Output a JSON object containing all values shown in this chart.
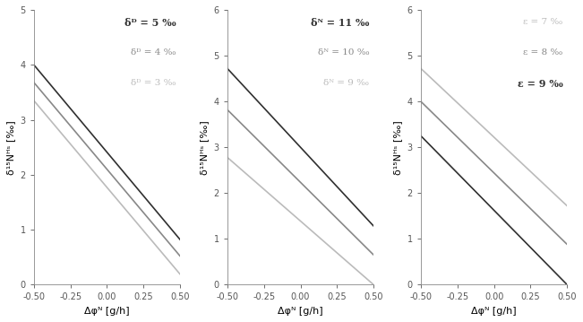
{
  "panels": [
    {
      "legend_lines": [
        {
          "label": "δᴰ = 5 ‰",
          "color": "#303030",
          "bold": true
        },
        {
          "label": "δᴰ = 4 ‰",
          "color": "#888888",
          "bold": false
        },
        {
          "label": "δᴰ = 3 ‰",
          "color": "#bbbbbb",
          "bold": false
        }
      ],
      "line_data": [
        {
          "x": [
            -0.5,
            0.5
          ],
          "y": [
            4.0,
            0.82
          ],
          "color": "#303030"
        },
        {
          "x": [
            -0.5,
            0.5
          ],
          "y": [
            3.68,
            0.52
          ],
          "color": "#888888"
        },
        {
          "x": [
            -0.5,
            0.5
          ],
          "y": [
            3.35,
            0.19
          ],
          "color": "#bbbbbb"
        }
      ],
      "ylim": [
        0,
        5
      ],
      "yticks": [
        0,
        1,
        2,
        3,
        4,
        5
      ],
      "ylabel": "δ¹⁵Nᴴˢ [‰]",
      "show_ylabel": true
    },
    {
      "legend_lines": [
        {
          "label": "δᴺ = 11 ‰",
          "color": "#303030",
          "bold": true
        },
        {
          "label": "δᴺ = 10 ‰",
          "color": "#888888",
          "bold": false
        },
        {
          "label": "δᴺ = 9 ‰",
          "color": "#bbbbbb",
          "bold": false
        }
      ],
      "line_data": [
        {
          "x": [
            -0.5,
            0.5
          ],
          "y": [
            4.72,
            1.28
          ],
          "color": "#303030"
        },
        {
          "x": [
            -0.5,
            0.5
          ],
          "y": [
            3.82,
            0.65
          ],
          "color": "#888888"
        },
        {
          "x": [
            -0.5,
            0.5
          ],
          "y": [
            2.78,
            0.0
          ],
          "color": "#bbbbbb"
        }
      ],
      "ylim": [
        0,
        6
      ],
      "yticks": [
        0,
        1,
        2,
        3,
        4,
        5,
        6
      ],
      "ylabel": "δ¹⁵Nᴴˢ [‰]",
      "show_ylabel": true
    },
    {
      "legend_lines": [
        {
          "label": "ε = 7 ‰",
          "color": "#bbbbbb",
          "bold": false
        },
        {
          "label": "ε = 8 ‰",
          "color": "#888888",
          "bold": false
        },
        {
          "label": "ε = 9 ‰",
          "color": "#303030",
          "bold": true
        }
      ],
      "line_data": [
        {
          "x": [
            -0.5,
            0.5
          ],
          "y": [
            4.72,
            1.72
          ],
          "color": "#bbbbbb"
        },
        {
          "x": [
            -0.5,
            0.5
          ],
          "y": [
            4.0,
            0.88
          ],
          "color": "#888888"
        },
        {
          "x": [
            -0.5,
            0.5
          ],
          "y": [
            3.25,
            0.0
          ],
          "color": "#303030"
        }
      ],
      "ylim": [
        0,
        6
      ],
      "yticks": [
        0,
        1,
        2,
        3,
        4,
        5,
        6
      ],
      "ylabel": "δ¹⁵Nᴴˢ [‰]",
      "show_ylabel": true
    }
  ],
  "xlabel": "Δφᴺ [g/h]",
  "xlim": [
    -0.5,
    0.5
  ],
  "xticks": [
    -0.5,
    -0.25,
    0.0,
    0.25,
    0.5
  ],
  "background_color": "#ffffff",
  "legend_symbol_map": {
    "panel1": {
      "D": "ᴰ",
      "P": "ᴺ"
    },
    "panel3": {
      "eps": "ε"
    }
  }
}
